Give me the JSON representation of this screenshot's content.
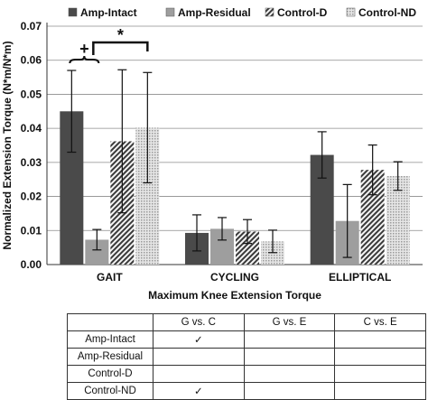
{
  "chart_data": {
    "type": "bar",
    "title": "",
    "xlabel": "Maximum Knee Extension Torque",
    "ylabel": "Normalized Extension Torque (N*m/N*m)",
    "ylim": [
      0,
      0.07
    ],
    "yticks": [
      "0.00",
      "0.01",
      "0.02",
      "0.03",
      "0.04",
      "0.05",
      "0.06",
      "0.07"
    ],
    "grid": true,
    "legend_position": "top",
    "categories": [
      "GAIT",
      "CYCLING",
      "ELLIPTICAL"
    ],
    "series": [
      {
        "name": "Amp-Intact",
        "values": [
          0.045,
          0.0093,
          0.0322
        ],
        "errors": [
          0.012,
          0.0053,
          0.0068
        ],
        "fill": "#4a4a4a",
        "pattern": "solid"
      },
      {
        "name": "Amp-Residual",
        "values": [
          0.0073,
          0.0105,
          0.0128
        ],
        "errors": [
          0.003,
          0.0033,
          0.0107
        ],
        "fill": "#9e9e9e",
        "pattern": "solid"
      },
      {
        "name": "Control-D",
        "values": [
          0.0362,
          0.0097,
          0.0278
        ],
        "errors": [
          0.021,
          0.0035,
          0.0073
        ],
        "fill": "#5a5a5a",
        "pattern": "crosshatch"
      },
      {
        "name": "Control-ND",
        "values": [
          0.0402,
          0.0068,
          0.026
        ],
        "errors": [
          0.0162,
          0.0033,
          0.0042
        ],
        "fill": "#c8c8c8",
        "pattern": "dots"
      }
    ],
    "annotations": [
      {
        "text": "+",
        "category": "GAIT",
        "spans": [
          "Amp-Intact",
          "Amp-Residual"
        ]
      },
      {
        "text": "*",
        "category": "GAIT",
        "spans": [
          "Amp-Residual",
          "Control-ND"
        ]
      }
    ]
  },
  "table": {
    "columns": [
      "",
      "G vs. C",
      "G vs. E",
      "C vs. E"
    ],
    "rows": [
      {
        "label": "Amp-Intact",
        "cells": [
          "✓",
          "",
          ""
        ]
      },
      {
        "label": "Amp-Residual",
        "cells": [
          "",
          "",
          ""
        ]
      },
      {
        "label": "Control-D",
        "cells": [
          "",
          "",
          ""
        ]
      },
      {
        "label": "Control-ND",
        "cells": [
          "✓",
          "",
          ""
        ]
      }
    ]
  }
}
